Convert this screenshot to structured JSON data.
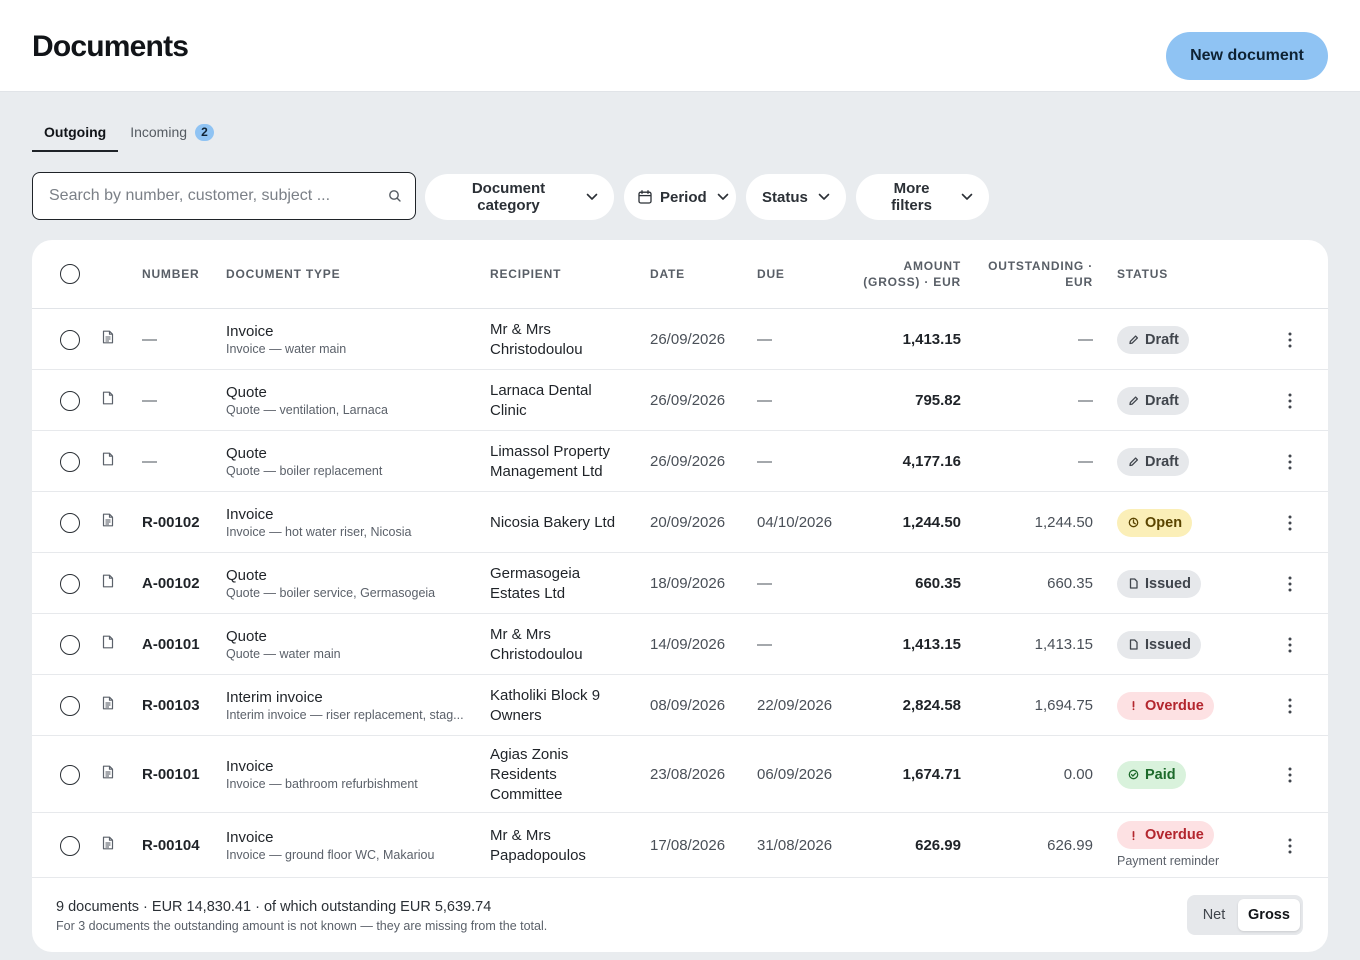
{
  "header": {
    "title": "Documents",
    "new_button": "New document"
  },
  "tabs": [
    {
      "label": "Outgoing",
      "active": true
    },
    {
      "label": "Incoming",
      "badge": "2",
      "active": false
    }
  ],
  "search": {
    "placeholder": "Search by number, customer, subject ...",
    "value": ""
  },
  "filters": {
    "category": "Document category",
    "period": "Period",
    "status": "Status",
    "more": "More filters"
  },
  "table": {
    "headers": {
      "number": "NUMBER",
      "type": "DOCUMENT TYPE",
      "recipient": "RECIPIENT",
      "date": "DATE",
      "due": "DUE",
      "amount_1": "AMOUNT",
      "amount_2": "(GROSS) · EUR",
      "outstanding_1": "OUTSTANDING ·",
      "outstanding_2": "EUR",
      "status": "STATUS"
    },
    "rows": [
      {
        "icon": "lined-document-icon",
        "number": "—",
        "type": "Invoice",
        "subject": "Invoice — water main",
        "recipient": "Mr & Mrs Christodoulou",
        "date": "26/09/2026",
        "due": "—",
        "amount": "1,413.15",
        "outstanding": "—",
        "status": "Draft",
        "status_kind": "draft"
      },
      {
        "icon": "blank-document-icon",
        "number": "—",
        "type": "Quote",
        "subject": "Quote — ventilation, Larnaca",
        "recipient": "Larnaca Dental Clinic",
        "date": "26/09/2026",
        "due": "—",
        "amount": "795.82",
        "outstanding": "—",
        "status": "Draft",
        "status_kind": "draft"
      },
      {
        "icon": "blank-document-icon",
        "number": "—",
        "type": "Quote",
        "subject": "Quote — boiler replacement",
        "recipient": "Limassol Property Management Ltd",
        "date": "26/09/2026",
        "due": "—",
        "amount": "4,177.16",
        "outstanding": "—",
        "status": "Draft",
        "status_kind": "draft"
      },
      {
        "icon": "lined-document-icon",
        "number": "R-00102",
        "type": "Invoice",
        "subject": "Invoice — hot water riser, Nicosia",
        "recipient": "Nicosia Bakery Ltd",
        "date": "20/09/2026",
        "due": "04/10/2026",
        "amount": "1,244.50",
        "outstanding": "1,244.50",
        "status": "Open",
        "status_kind": "open"
      },
      {
        "icon": "blank-document-icon",
        "number": "A-00102",
        "type": "Quote",
        "subject": "Quote — boiler service, Germasogeia",
        "recipient": "Germasogeia Estates Ltd",
        "date": "18/09/2026",
        "due": "—",
        "amount": "660.35",
        "outstanding": "660.35",
        "status": "Issued",
        "status_kind": "issued"
      },
      {
        "icon": "blank-document-icon",
        "number": "A-00101",
        "type": "Quote",
        "subject": "Quote — water main",
        "recipient": "Mr & Mrs Christodoulou",
        "date": "14/09/2026",
        "due": "—",
        "amount": "1,413.15",
        "outstanding": "1,413.15",
        "status": "Issued",
        "status_kind": "issued"
      },
      {
        "icon": "lined-document-icon",
        "number": "R-00103",
        "type": "Interim invoice",
        "subject": "Interim invoice — riser replacement, stag...",
        "recipient": "Katholiki Block 9 Owners",
        "date": "08/09/2026",
        "due": "22/09/2026",
        "amount": "2,824.58",
        "outstanding": "1,694.75",
        "status": "Overdue",
        "status_kind": "overdue"
      },
      {
        "icon": "lined-document-icon",
        "number": "R-00101",
        "type": "Invoice",
        "subject": "Invoice — bathroom refurbishment",
        "recipient": "Agias Zonis Residents Committee",
        "date": "23/08/2026",
        "due": "06/09/2026",
        "amount": "1,674.71",
        "outstanding": "0.00",
        "status": "Paid",
        "status_kind": "paid"
      },
      {
        "icon": "lined-document-icon",
        "number": "R-00104",
        "type": "Invoice",
        "subject": "Invoice — ground floor WC, Makariou",
        "recipient": "Mr & Mrs Papadopoulos",
        "date": "17/08/2026",
        "due": "31/08/2026",
        "amount": "626.99",
        "outstanding": "626.99",
        "status": "Overdue",
        "status_kind": "overdue",
        "status_note": "Payment reminder"
      }
    ]
  },
  "footer": {
    "summary": "9 documents · EUR 14,830.41 · of which outstanding EUR 5,639.74",
    "note": "For 3 documents the outstanding amount is not known — they are missing from the total.",
    "toggle": {
      "net": "Net",
      "gross": "Gross",
      "selected": "Gross"
    }
  },
  "colors": {
    "accent": "#8fc3f3",
    "draft": "#e6e8eb",
    "open": "#fbefb8",
    "overdue": "#fde1e3",
    "paid": "#d9f2dc"
  }
}
